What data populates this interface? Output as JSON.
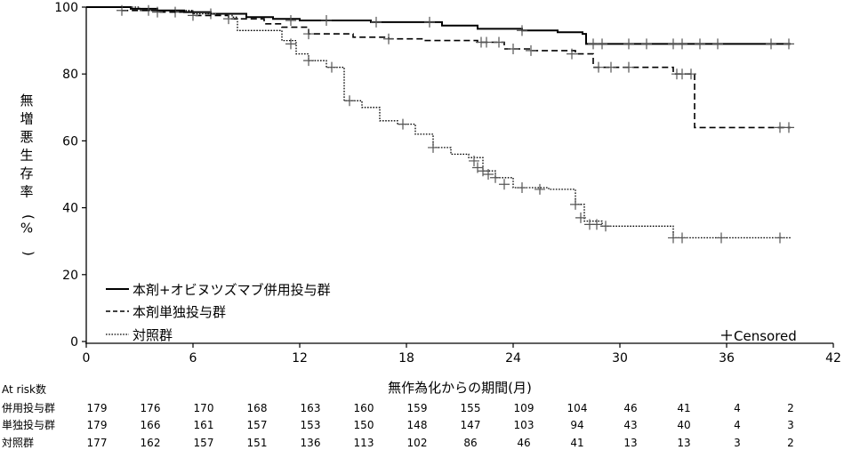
{
  "chart_data": {
    "type": "line",
    "title": "",
    "xlabel": "無作為化からの期間(月)",
    "ylabel": "無増悪生存率(%)",
    "xlim": [
      0,
      42
    ],
    "ylim": [
      0,
      100
    ],
    "xticks": [
      0,
      6,
      12,
      18,
      24,
      30,
      36,
      42
    ],
    "yticks": [
      0,
      20,
      40,
      60,
      80,
      100
    ],
    "legend_position": "bottom-left",
    "censored_label": "Censored",
    "series": [
      {
        "name": "本剤+オビヌツズマブ併用投与群",
        "style": "solid",
        "color": "#000000",
        "x": [
          0,
          2.5,
          4,
          5.5,
          7,
          9,
          10.5,
          12,
          14,
          16,
          18,
          20,
          22,
          24.5,
          26.5,
          27.9,
          28.1,
          39.6
        ],
        "y": [
          100,
          99.5,
          99,
          98.5,
          98,
          97,
          96.5,
          96,
          96,
          95.5,
          95.5,
          94.5,
          93.5,
          93,
          92.5,
          92,
          89,
          89
        ],
        "censored_x": [
          3.5,
          5,
          7,
          11.5,
          13.5,
          16.3,
          19.3,
          24.5,
          28.5,
          29,
          30.5,
          31.5,
          33,
          33.5,
          34.5,
          35.5,
          38.5,
          39.5
        ],
        "censored_y": [
          99,
          98.5,
          98,
          96,
          96,
          95.5,
          95.5,
          93,
          89,
          89,
          89,
          89,
          89,
          89,
          89,
          89,
          89,
          89
        ]
      },
      {
        "name": "本剤単独投与群",
        "style": "dashed",
        "color": "#000000",
        "x": [
          0,
          2,
          4,
          6,
          8,
          10,
          11,
          12.5,
          15,
          17,
          19,
          22,
          23.5,
          25,
          27.5,
          28.5,
          31,
          33,
          34,
          34.2,
          39.6
        ],
        "y": [
          100,
          99,
          98.5,
          97.5,
          96.5,
          95,
          94,
          92,
          91,
          90.5,
          90,
          89.5,
          87.5,
          87,
          86,
          82,
          82,
          80,
          80,
          64,
          64
        ],
        "censored_x": [
          2,
          4,
          6,
          8,
          12.5,
          17,
          22.2,
          22.5,
          23.2,
          24,
          25,
          27.3,
          28.8,
          29.5,
          30.5,
          33.2,
          33.5,
          34,
          39,
          39.5
        ],
        "censored_y": [
          99,
          98.5,
          97.5,
          96.5,
          92,
          90.5,
          89.5,
          89.5,
          89.5,
          87.5,
          87,
          86,
          82,
          82,
          82,
          80,
          80,
          80,
          64,
          64
        ],
        "risk": [
          179,
          166,
          161,
          157,
          153,
          150,
          148,
          147,
          103,
          94,
          43,
          40,
          4,
          3
        ]
      },
      {
        "name": "対照群",
        "style": "dotted",
        "color": "#000000",
        "x": [
          0,
          3,
          6,
          8.2,
          8.5,
          11,
          11.8,
          12.5,
          13.5,
          14.5,
          15.5,
          16.5,
          17.5,
          18.5,
          19.5,
          20.5,
          21.5,
          22.3,
          23,
          24,
          26,
          27.5,
          28,
          29,
          33,
          39.6
        ],
        "y": [
          100,
          99,
          98,
          97,
          93,
          90,
          86,
          84,
          82,
          72,
          70,
          66,
          65,
          62,
          58,
          56,
          55,
          51,
          49,
          46,
          45.5,
          41,
          36,
          34.5,
          31,
          31
        ],
        "censored_x": [
          11.5,
          12.5,
          13.8,
          14.8,
          17.8,
          19.5,
          21.8,
          22,
          22.3,
          22.6,
          23,
          23.5,
          24.5,
          25.5,
          27.5,
          27.8,
          28.3,
          28.7,
          29.2,
          33,
          33.5,
          35.7,
          39
        ],
        "censored_y": [
          89,
          84,
          82,
          72,
          65,
          58,
          54,
          52,
          51,
          50,
          49,
          47,
          46,
          45.5,
          41,
          37,
          35,
          35,
          34.5,
          31,
          31,
          31,
          31
        ],
        "risk": [
          177,
          162,
          157,
          151,
          136,
          113,
          102,
          86,
          46,
          41,
          13,
          13,
          3,
          2
        ]
      }
    ],
    "at_risk": {
      "title": "At risk数",
      "times": [
        0,
        3,
        6,
        9,
        12,
        15,
        18,
        21,
        24,
        27,
        30,
        33,
        36,
        39
      ],
      "rows": [
        {
          "label": "併用投与群",
          "values": [
            179,
            176,
            170,
            168,
            163,
            160,
            159,
            155,
            109,
            104,
            46,
            41,
            4,
            2
          ]
        },
        {
          "label": "単独投与群",
          "values": [
            179,
            166,
            161,
            157,
            153,
            150,
            148,
            147,
            103,
            94,
            43,
            40,
            4,
            3
          ]
        },
        {
          "label": "対照群",
          "values": [
            177,
            162,
            157,
            151,
            136,
            113,
            102,
            86,
            46,
            41,
            13,
            13,
            3,
            2
          ]
        }
      ]
    }
  }
}
